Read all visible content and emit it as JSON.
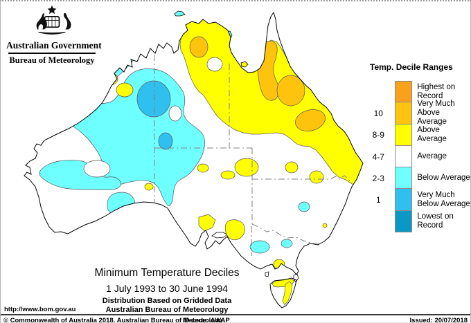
{
  "header": {
    "government": "Australian Government",
    "bureau": "Bureau of Meteorology"
  },
  "legend": {
    "title": "Temp. Decile Ranges",
    "entries": [
      {
        "decile": "",
        "label": "Highest on\nRecord",
        "color": "#F9A11A"
      },
      {
        "decile": "10",
        "label": "Very Much\nAbove Average",
        "color": "#FEC40D"
      },
      {
        "decile": "8-9",
        "label": "Above Average",
        "color": "#FFFF00"
      },
      {
        "decile": "4-7",
        "label": "Average",
        "color": "#FFFFFF"
      },
      {
        "decile": "2-3",
        "label": "Below Average",
        "color": "#6EFFFF"
      },
      {
        "decile": "1",
        "label": "Very Much\nBelow Average",
        "color": "#2FC0F0"
      },
      {
        "decile": "",
        "label": "Lowest on\nRecord",
        "color": "#0999C4"
      }
    ]
  },
  "map": {
    "region_colors": {
      "land": "#FFFFFF",
      "above": "#FFFF00",
      "very_much_above": "#FEC40D",
      "below": "#6EFFFF",
      "very_much_below": "#2FC0F0"
    }
  },
  "caption": {
    "title": "Minimum Temperature Deciles",
    "period": "1 July 1993 to 30 June 1994",
    "line3": "Distribution Based on Gridded Data",
    "line4": "Australian Bureau of Meteorology"
  },
  "footer": {
    "url": "http://www.bom.gov.au",
    "copyright": "© Commonwealth of Australia 2018, Australian Bureau of Meteorology",
    "id_code": "ID code: AWAP",
    "issued": "Issued: 20/07/2018"
  }
}
